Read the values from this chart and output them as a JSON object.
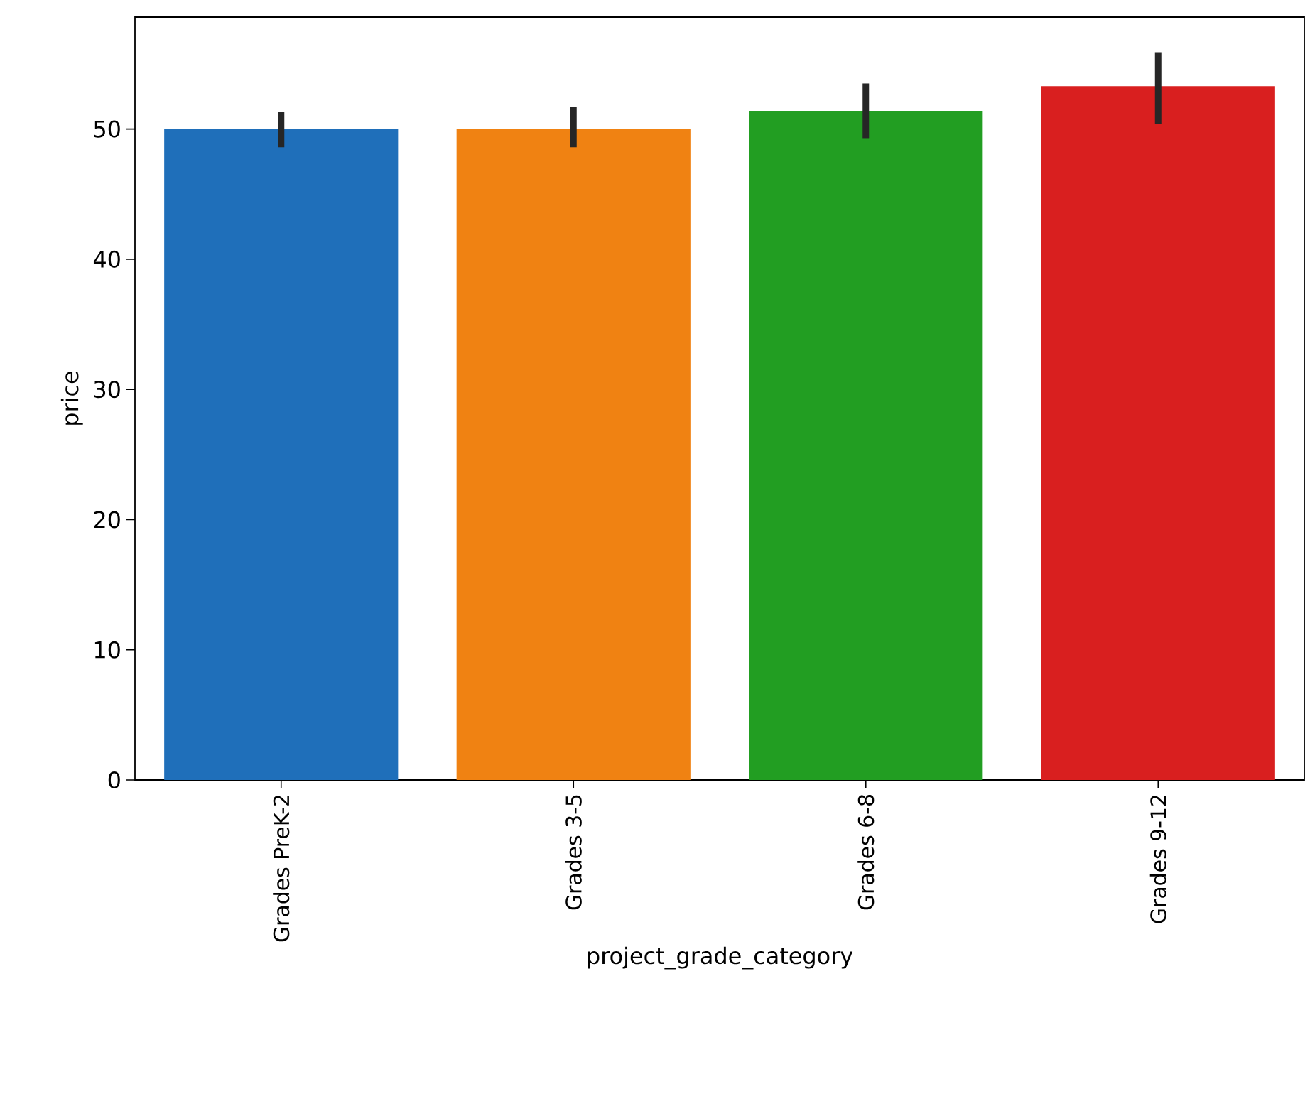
{
  "chart_data": {
    "type": "bar",
    "xlabel": "project_grade_category",
    "ylabel": "price",
    "categories": [
      "Grades PreK-2",
      "Grades 3-5",
      "Grades 6-8",
      "Grades 9-12"
    ],
    "values": [
      50.0,
      50.0,
      51.4,
      53.3
    ],
    "colors": [
      "#1f6fba",
      "#f08212",
      "#229e22",
      "#d91f1f"
    ],
    "errors": [
      [
        48.6,
        51.3
      ],
      [
        48.6,
        51.7
      ],
      [
        49.3,
        53.5
      ],
      [
        50.4,
        55.9
      ]
    ],
    "ylim": [
      0,
      58.6
    ],
    "yticks": [
      0,
      10,
      20,
      30,
      40,
      50
    ],
    "grid": false
  }
}
